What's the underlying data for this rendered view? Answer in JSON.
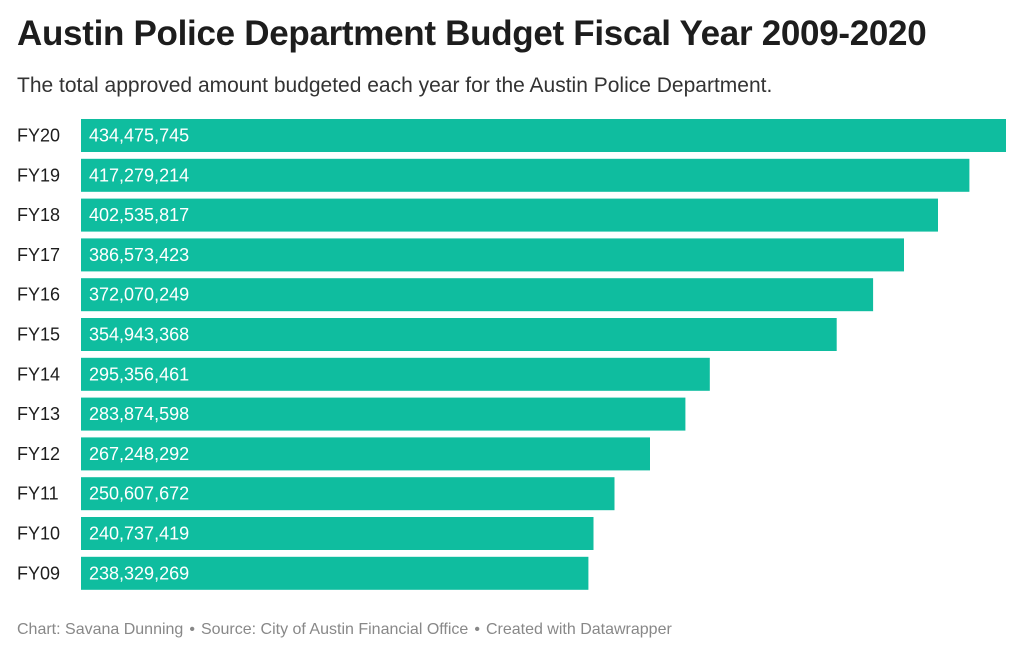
{
  "title": "Austin Police Department Budget Fiscal Year 2009-2020",
  "subtitle": "The total approved amount budgeted each year for the Austin Police Department.",
  "footer": {
    "chart_credit": "Chart: Savana Dunning",
    "source": "Source: City of Austin Financial Office",
    "tool": "Created with Datawrapper",
    "separator": "•"
  },
  "colors": {
    "bar": "#0fbd9f",
    "bar_label": "#ffffff",
    "category_label": "#1d1d1d"
  },
  "chart_data": {
    "type": "bar",
    "orientation": "horizontal",
    "title": "Austin Police Department Budget Fiscal Year 2009-2020",
    "xlabel": "",
    "ylabel": "",
    "xlim": [
      0,
      434475745
    ],
    "grid": false,
    "categories": [
      "FY20",
      "FY19",
      "FY18",
      "FY17",
      "FY16",
      "FY15",
      "FY14",
      "FY13",
      "FY12",
      "FY11",
      "FY10",
      "FY09"
    ],
    "values": [
      434475745,
      417279214,
      402535817,
      386573423,
      372070249,
      354943368,
      295356461,
      283874598,
      267248292,
      250607672,
      240737419,
      238329269
    ],
    "value_labels": [
      "434,475,745",
      "417,279,214",
      "402,535,817",
      "386,573,423",
      "372,070,249",
      "354,943,368",
      "295,356,461",
      "283,874,598",
      "267,248,292",
      "250,607,672",
      "240,737,419",
      "238,329,269"
    ]
  }
}
